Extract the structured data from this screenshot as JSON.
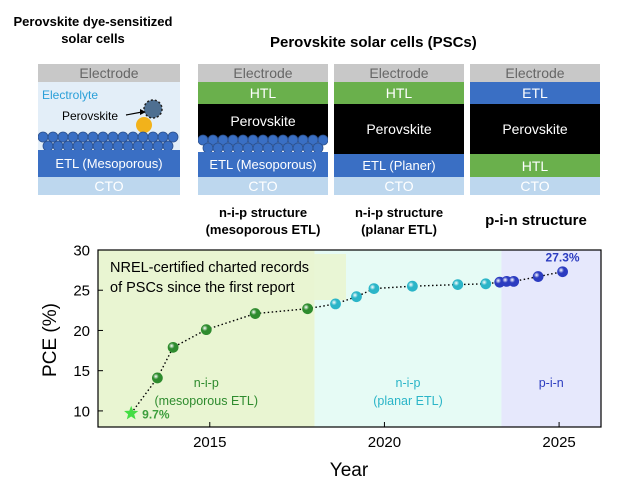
{
  "top": {
    "dssc_title": "Perovskite dye-sensitized solar cells",
    "psc_title": "Perovskite solar cells (PSCs)",
    "dssc": {
      "electrode": "Electrode",
      "electrolyte": "Electrolyte",
      "perovskite": "Perovskite",
      "etl": "ETL (Mesoporous)",
      "cto": "CTO"
    },
    "nip_meso": {
      "electrode": "Electrode",
      "htl": "HTL",
      "perovskite": "Perovskite",
      "etl": "ETL (Mesoporous)",
      "cto": "CTO",
      "caption_line1": "n-i-p structure",
      "caption_line2": "(mesoporous ETL)"
    },
    "nip_planar": {
      "electrode": "Electrode",
      "htl": "HTL",
      "perovskite": "Perovskite",
      "etl": "ETL (Planer)",
      "cto": "CTO",
      "caption_line1": "n-i-p structure",
      "caption_line2": "(planar ETL)"
    },
    "pin": {
      "electrode": "Electrode",
      "etl": "ETL",
      "perovskite": "Perovskite",
      "htl": "HTL",
      "cto": "CTO",
      "caption": "p-i-n structure"
    }
  },
  "colors": {
    "electrode": "#c8c8c8",
    "htl": "#6ab04c",
    "etl": "#3a6fc4",
    "cto": "#bdd7ee",
    "perovskite": "#000000",
    "electrolyte_bg": "#e3eef8",
    "meso_region": "#e9f5d2",
    "planar_region": "#e6fbf5",
    "pin_region": "#e6e8fc",
    "meso_marker": "#2e8b2e",
    "planar_marker": "#2bb5c8",
    "pin_marker": "#2c3cc0",
    "star": "#44dd44"
  },
  "chart_data": {
    "type": "scatter",
    "title": "",
    "annotation_line1": "NREL-certified charted records",
    "annotation_line2": "of PSCs since the first report",
    "xlabel": "Year",
    "ylabel": "PCE (%)",
    "xlim": [
      2011.8,
      2026.2
    ],
    "ylim": [
      8,
      30
    ],
    "xticks": [
      2015,
      2020,
      2025
    ],
    "yticks": [
      10,
      15,
      20,
      25,
      30
    ],
    "regions": [
      {
        "label_line1": "n-i-p",
        "label_line2": "(mesoporous ETL)",
        "x_start": 2011.8,
        "x_end": 2018.0,
        "color": "#e9f5d2",
        "text_color": "#2e8b2e"
      },
      {
        "label_line1": "n-i-p",
        "label_line2": "(planar ETL)",
        "x_start": 2018.0,
        "x_end": 2023.35,
        "color": "#e6fbf5",
        "text_color": "#2bb5c8"
      },
      {
        "label_line1": "p-i-n",
        "label_line2": "",
        "x_start": 2023.35,
        "x_end": 2026.2,
        "color": "#e6e8fc",
        "text_color": "#2c3cc0"
      }
    ],
    "series": [
      {
        "marker": "star",
        "color": "#44dd44",
        "points": [
          [
            2012.75,
            9.7
          ]
        ]
      },
      {
        "marker": "circle",
        "color": "#2e8b2e",
        "points": [
          [
            2013.5,
            14.1
          ],
          [
            2013.95,
            17.9
          ],
          [
            2014.9,
            20.1
          ],
          [
            2016.3,
            22.1
          ],
          [
            2017.8,
            22.7
          ]
        ]
      },
      {
        "marker": "circle",
        "color": "#2bb5c8",
        "points": [
          [
            2018.6,
            23.3
          ],
          [
            2019.2,
            24.2
          ],
          [
            2019.7,
            25.2
          ],
          [
            2020.8,
            25.5
          ],
          [
            2022.1,
            25.7
          ],
          [
            2022.9,
            25.8
          ]
        ]
      },
      {
        "marker": "circle",
        "color": "#2c3cc0",
        "points": [
          [
            2023.3,
            26.0
          ],
          [
            2023.5,
            26.1
          ],
          [
            2023.7,
            26.1
          ],
          [
            2024.4,
            26.7
          ],
          [
            2025.1,
            27.3
          ]
        ]
      }
    ],
    "data_labels": [
      {
        "text": "9.7%",
        "x": 2012.75,
        "y": 9.7,
        "color": "#3c9e3c"
      },
      {
        "text": "27.3%",
        "x": 2025.1,
        "y": 27.3,
        "color": "#2c3cc0"
      }
    ]
  }
}
